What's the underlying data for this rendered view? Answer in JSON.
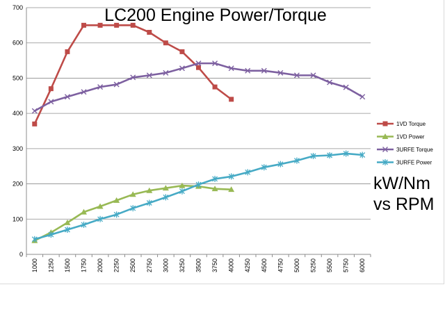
{
  "chart_data": {
    "type": "line",
    "title": "LC200 Engine Power/Torque",
    "annotation": [
      "kW/Nm",
      "vs RPM"
    ],
    "xlabel": "",
    "ylabel": "",
    "categories": [
      "1000",
      "1250",
      "1500",
      "1750",
      "2000",
      "2250",
      "2500",
      "2750",
      "3000",
      "3250",
      "3500",
      "3750",
      "4000",
      "4250",
      "4500",
      "4750",
      "5000",
      "5250",
      "5500",
      "5750",
      "6000"
    ],
    "ylim": [
      0,
      700
    ],
    "yticks": [
      0,
      100,
      200,
      300,
      400,
      500,
      600,
      700
    ],
    "grid": true,
    "legend_position": "right",
    "series": [
      {
        "name": "1VD Torque",
        "color": "#be4b48",
        "marker": "square",
        "values": [
          370,
          470,
          575,
          650,
          650,
          650,
          650,
          630,
          600,
          575,
          530,
          475,
          440,
          null,
          null,
          null,
          null,
          null,
          null,
          null,
          null
        ]
      },
      {
        "name": "1VD Power",
        "color": "#98b954",
        "marker": "triangle",
        "values": [
          39,
          62,
          90,
          120,
          136,
          153,
          170,
          181,
          188,
          195,
          193,
          186,
          184,
          null,
          null,
          null,
          null,
          null,
          null,
          null,
          null
        ]
      },
      {
        "name": "3URFE Torque",
        "color": "#7d60a0",
        "marker": "x",
        "values": [
          407,
          433,
          447,
          461,
          475,
          482,
          502,
          508,
          515,
          528,
          542,
          542,
          528,
          521,
          521,
          515,
          508,
          508,
          488,
          474,
          447
        ]
      },
      {
        "name": "3URFE Power",
        "color": "#46aac5",
        "marker": "star",
        "values": [
          43,
          56,
          70,
          84,
          100,
          113,
          131,
          146,
          162,
          179,
          198,
          214,
          221,
          233,
          247,
          256,
          266,
          279,
          281,
          286,
          282
        ]
      }
    ]
  }
}
